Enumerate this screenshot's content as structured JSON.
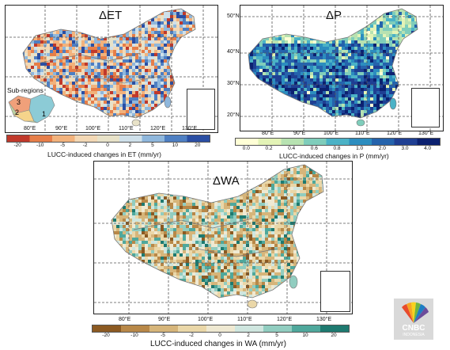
{
  "panels": {
    "et": {
      "title": "ΔET",
      "lon_ticks": [
        "80°E",
        "90°E",
        "100°E",
        "110°E",
        "120°E",
        "130°E"
      ],
      "colorbar_ticks": [
        "-20",
        "-10",
        "-5",
        "-2",
        "0",
        "2",
        "5",
        "10",
        "20"
      ],
      "colorbar_label": "LUCC-induced changes in ET (mm/yr)",
      "colors": [
        "#c0392b",
        "#e67e49",
        "#f2b27c",
        "#f3d8b5",
        "#e8e2c8",
        "#cfe0ea",
        "#8fb7dc",
        "#4e7fc2",
        "#2a4ea3"
      ],
      "legend_title": "Sub-regions",
      "legend_regions": [
        "1",
        "2",
        "3"
      ]
    },
    "p": {
      "title": "ΔP",
      "lat_ticks": [
        "50°N",
        "40°N",
        "30°N",
        "20°N"
      ],
      "lon_ticks": [
        "80°E",
        "90°E",
        "100°E",
        "110°E",
        "120°E",
        "130°E"
      ],
      "colorbar_ticks": [
        "0.0",
        "0.2",
        "0.4",
        "0.6",
        "0.8",
        "1.0",
        "2.0",
        "3.0",
        "4.0"
      ],
      "colorbar_label": "LUCC-induced changes in P (mm/yr)",
      "colors": [
        "#ffffd6",
        "#e3f3b6",
        "#b7e2b1",
        "#7fcdbb",
        "#4bb2c6",
        "#2c8dbf",
        "#2563ac",
        "#1f3f93",
        "#0c2170"
      ]
    },
    "wa": {
      "title": "ΔWA",
      "lon_ticks": [
        "80°E",
        "90°E",
        "100°E",
        "110°E",
        "120°E",
        "130°E"
      ],
      "colorbar_ticks": [
        "-20",
        "-10",
        "-5",
        "-2",
        "0",
        "2",
        "5",
        "10",
        "20"
      ],
      "colorbar_label": "LUCC-induced changes in WA (mm/yr)",
      "colors": [
        "#8c5a22",
        "#b88848",
        "#d6b57a",
        "#ead7a8",
        "#efe9d2",
        "#cfe6df",
        "#91cdc0",
        "#4fa89c",
        "#1e7a70"
      ]
    }
  },
  "watermark": {
    "brand": "CNBC",
    "sub": "INDONESIA"
  }
}
